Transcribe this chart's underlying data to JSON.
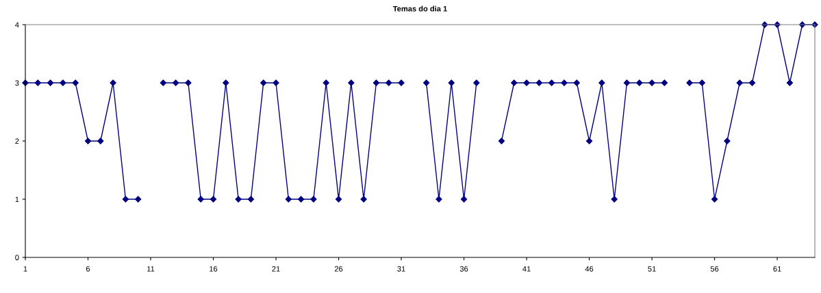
{
  "chart_data": {
    "type": "line",
    "title": "Temas do dia 1",
    "x": [
      1,
      2,
      3,
      4,
      5,
      6,
      7,
      8,
      9,
      10,
      11,
      12,
      13,
      14,
      15,
      16,
      17,
      18,
      19,
      20,
      21,
      22,
      23,
      24,
      25,
      26,
      27,
      28,
      29,
      30,
      31,
      32,
      33,
      34,
      35,
      36,
      37,
      38,
      39,
      40,
      41,
      42,
      43,
      44,
      45,
      46,
      47,
      48,
      49,
      50,
      51,
      52,
      53,
      54,
      55,
      56,
      57,
      58,
      59,
      60,
      61,
      62,
      63,
      64
    ],
    "series": [
      {
        "color": "#000080",
        "values": [
          3,
          3,
          3,
          3,
          3,
          2,
          2,
          3,
          1,
          1,
          null,
          3,
          3,
          3,
          1,
          1,
          3,
          1,
          1,
          3,
          3,
          1,
          1,
          1,
          3,
          1,
          3,
          1,
          3,
          3,
          3,
          null,
          3,
          1,
          3,
          1,
          3,
          null,
          2,
          3,
          3,
          3,
          3,
          3,
          3,
          2,
          3,
          1,
          3,
          3,
          3,
          3,
          null,
          3,
          3,
          1,
          2,
          3,
          3,
          4,
          4,
          3,
          4,
          4
        ]
      }
    ],
    "xlim": [
      1,
      64
    ],
    "xticks": [
      1,
      6,
      11,
      16,
      21,
      26,
      31,
      36,
      41,
      46,
      51,
      56,
      61
    ],
    "ylim": [
      0,
      4
    ],
    "yticks": [
      0,
      1,
      2,
      3,
      4
    ],
    "grid": false,
    "legend": false,
    "marker": "diamond",
    "line_style": "solid"
  }
}
